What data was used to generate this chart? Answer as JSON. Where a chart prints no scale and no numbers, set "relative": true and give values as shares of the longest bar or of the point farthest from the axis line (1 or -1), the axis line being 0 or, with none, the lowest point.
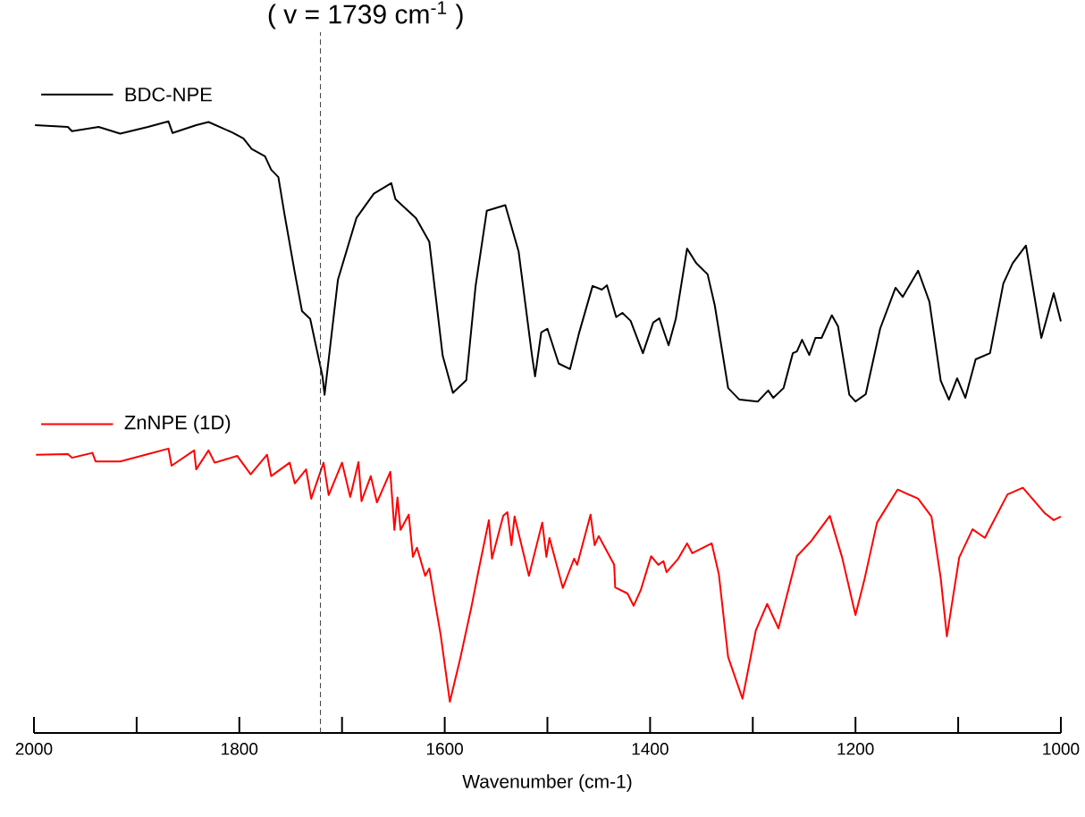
{
  "chart_data": {
    "type": "line",
    "relative": true,
    "xlabel": "Wavenumber (cm-1)",
    "xlim": [
      2000,
      1000
    ],
    "xticks": [
      2000,
      1800,
      1600,
      1400,
      1200,
      1000
    ],
    "legend": "left",
    "grid": false,
    "marker": "none",
    "line_style": "solid",
    "ref_lines": [
      {
        "axis": "x",
        "value": 1721,
        "color": "#404040",
        "line_style": "dashed"
      }
    ],
    "annotations": [
      "( v = 1739 cm$^{-1}$ )"
    ],
    "series": [
      {
        "name": "BDC-NPE",
        "color": "#000000",
        "x": [
          1999,
          1967,
          1963,
          1937,
          1916,
          1889,
          1869,
          1865,
          1842,
          1830,
          1807,
          1796,
          1788,
          1775,
          1769,
          1762,
          1756,
          1746,
          1739,
          1731,
          1719,
          1717,
          1704,
          1686,
          1669,
          1652,
          1648,
          1628,
          1615,
          1602,
          1592,
          1579,
          1570,
          1559,
          1541,
          1528,
          1515,
          1512,
          1506,
          1500,
          1489,
          1478,
          1469,
          1456,
          1447,
          1442,
          1433,
          1427,
          1419,
          1407,
          1397,
          1391,
          1382,
          1375,
          1364,
          1355,
          1344,
          1337,
          1324,
          1313,
          1295,
          1285,
          1280,
          1270,
          1261,
          1257,
          1252,
          1245,
          1239,
          1233,
          1223,
          1217,
          1206,
          1200,
          1190,
          1176,
          1161,
          1154,
          1139,
          1128,
          1117,
          1109,
          1101,
          1093,
          1083,
          1069,
          1056,
          1047,
          1034,
          1019,
          1007,
          1000
        ],
        "values": [
          0.994,
          0.991,
          0.984,
          0.991,
          0.98,
          0.991,
          1.0,
          0.981,
          0.994,
          0.999,
          0.982,
          0.972,
          0.955,
          0.943,
          0.921,
          0.909,
          0.848,
          0.753,
          0.69,
          0.677,
          0.583,
          0.553,
          0.741,
          0.842,
          0.882,
          0.899,
          0.873,
          0.842,
          0.803,
          0.617,
          0.556,
          0.577,
          0.73,
          0.854,
          0.863,
          0.787,
          0.617,
          0.583,
          0.655,
          0.661,
          0.604,
          0.595,
          0.655,
          0.731,
          0.725,
          0.732,
          0.68,
          0.687,
          0.674,
          0.621,
          0.671,
          0.678,
          0.634,
          0.677,
          0.792,
          0.768,
          0.75,
          0.699,
          0.564,
          0.545,
          0.542,
          0.56,
          0.548,
          0.564,
          0.621,
          0.624,
          0.643,
          0.618,
          0.646,
          0.646,
          0.683,
          0.665,
          0.553,
          0.542,
          0.554,
          0.661,
          0.728,
          0.713,
          0.756,
          0.705,
          0.576,
          0.545,
          0.58,
          0.548,
          0.611,
          0.621,
          0.735,
          0.768,
          0.797,
          0.646,
          0.719,
          0.673
        ]
      },
      {
        "name": "ZnNPE (1D)",
        "color": "#ff0000",
        "x": [
          1998,
          1967,
          1963,
          1943,
          1940,
          1916,
          1889,
          1869,
          1866,
          1844,
          1842,
          1830,
          1824,
          1802,
          1789,
          1773,
          1769,
          1751,
          1746,
          1735,
          1730,
          1718,
          1713,
          1700,
          1692,
          1684,
          1681,
          1672,
          1666,
          1653,
          1649,
          1646,
          1643,
          1635,
          1631,
          1627,
          1619,
          1615,
          1610,
          1604,
          1595,
          1585,
          1574,
          1567,
          1557,
          1554,
          1543,
          1539,
          1535,
          1532,
          1518,
          1505,
          1501,
          1498,
          1485,
          1474,
          1471,
          1458,
          1454,
          1450,
          1435,
          1434,
          1422,
          1416,
          1409,
          1399,
          1392,
          1387,
          1384,
          1373,
          1364,
          1359,
          1340,
          1333,
          1324,
          1310,
          1297,
          1286,
          1275,
          1257,
          1243,
          1225,
          1213,
          1200,
          1191,
          1179,
          1159,
          1139,
          1126,
          1117,
          1111,
          1099,
          1086,
          1074,
          1052,
          1037,
          1016,
          1007,
          1000
        ],
        "values": [
          0.455,
          0.456,
          0.45,
          0.458,
          0.444,
          0.444,
          0.456,
          0.465,
          0.437,
          0.462,
          0.431,
          0.462,
          0.442,
          0.453,
          0.423,
          0.455,
          0.42,
          0.442,
          0.408,
          0.431,
          0.383,
          0.442,
          0.389,
          0.442,
          0.386,
          0.443,
          0.379,
          0.42,
          0.377,
          0.427,
          0.332,
          0.385,
          0.332,
          0.357,
          0.288,
          0.303,
          0.257,
          0.269,
          0.219,
          0.161,
          0.051,
          0.121,
          0.206,
          0.266,
          0.348,
          0.285,
          0.355,
          0.361,
          0.307,
          0.354,
          0.257,
          0.344,
          0.288,
          0.319,
          0.237,
          0.285,
          0.275,
          0.357,
          0.307,
          0.322,
          0.275,
          0.238,
          0.228,
          0.208,
          0.234,
          0.289,
          0.275,
          0.281,
          0.263,
          0.284,
          0.31,
          0.294,
          0.31,
          0.259,
          0.124,
          0.056,
          0.168,
          0.211,
          0.171,
          0.289,
          0.314,
          0.355,
          0.287,
          0.193,
          0.253,
          0.344,
          0.398,
          0.383,
          0.354,
          0.253,
          0.158,
          0.287,
          0.333,
          0.319,
          0.39,
          0.401,
          0.36,
          0.348,
          0.354
        ]
      }
    ]
  }
}
